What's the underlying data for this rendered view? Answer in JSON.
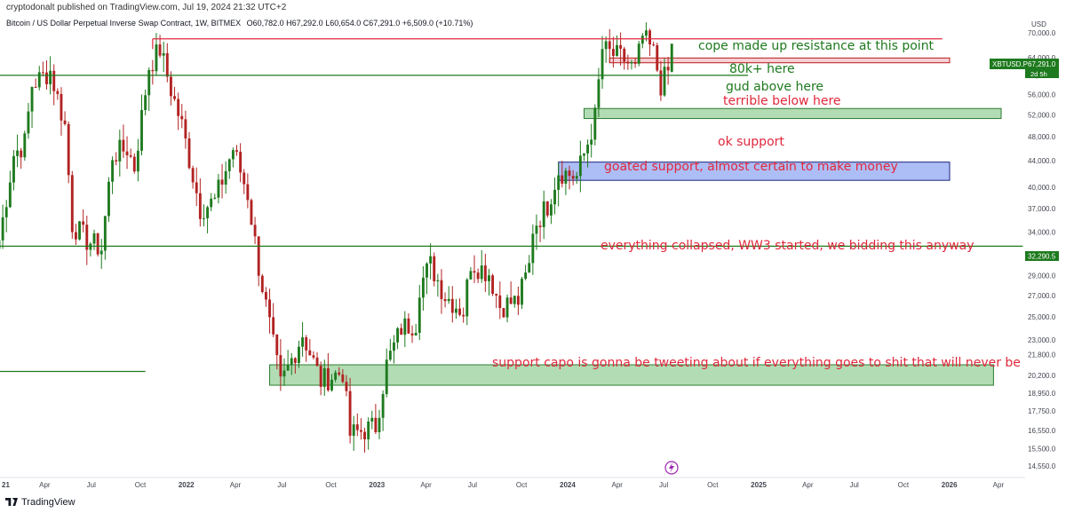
{
  "header": {
    "published": "cryptodonalt published on TradingView.com, Jul 19, 2024 21:32 UTC+2",
    "title": "Bitcoin / US Dollar Perpetual Inverse Swap Contract, 1W, BITMEX",
    "ohlc": "O60,782.0  H67,292.0  L60,654.0  C67,291.0  +6,509.0 (+10.71%)"
  },
  "brand": {
    "name": "TradingView"
  },
  "axis": {
    "currency": "USD"
  },
  "colors": {
    "up": "#089981",
    "down": "#f23645",
    "candle_up": "#1e7a1e",
    "candle_down": "#b22222",
    "annot_green": "#1e7a1e",
    "annot_red": "#e0283c",
    "zone_green": "#a5d6a7",
    "zone_blue": "#9fb3f5",
    "zone_red": "#f7c7cc"
  },
  "chart_data": {
    "type": "candlestick",
    "symbol": "XBTUSD.P",
    "interval": "1W",
    "exchange": "BITMEX",
    "y_scale": "log",
    "ylim": [
      14000,
      76000
    ],
    "price_ticks": [
      "70,000.0",
      "64,000.0",
      "60,000.0",
      "56,000.0",
      "52,000.0",
      "48,000.0",
      "44,000.0",
      "40,000.0",
      "37,000.0",
      "34,000.0",
      "31,000.0",
      "29,000.0",
      "27,000.0",
      "25,000.0",
      "23,000.0",
      "21,800.0",
      "20,200.0",
      "18,950.0",
      "17,750.0",
      "16,550.0",
      "15,500.0",
      "14,550.0"
    ],
    "time_ticks": [
      "2021",
      "Apr",
      "Jul",
      "Oct",
      "2022",
      "Apr",
      "Jul",
      "Oct",
      "2023",
      "Apr",
      "Jul",
      "Oct",
      "2024",
      "Apr",
      "Jul",
      "Oct",
      "2025",
      "Apr",
      "Jul",
      "Oct",
      "2026",
      "Apr"
    ],
    "ohlc": {
      "open": 60782.0,
      "high": 67292.0,
      "low": 60654.0,
      "close": 67291.0,
      "change": 6509.0,
      "change_pct": 10.71
    },
    "last_price_label": "67,291.0",
    "countdown_label": "2d 5h",
    "level_label": "32,290.5",
    "close_path": [
      [
        "2021-01-04",
        33000
      ],
      [
        "2021-02-01",
        45000
      ],
      [
        "2021-02-22",
        47000
      ],
      [
        "2021-03-08",
        58000
      ],
      [
        "2021-04-12",
        61000
      ],
      [
        "2021-05-10",
        50000
      ],
      [
        "2021-05-24",
        35000
      ],
      [
        "2021-06-21",
        33000
      ],
      [
        "2021-07-19",
        32000
      ],
      [
        "2021-08-09",
        45000
      ],
      [
        "2021-09-06",
        46000
      ],
      [
        "2021-09-20",
        43000
      ],
      [
        "2021-10-18",
        62000
      ],
      [
        "2021-11-08",
        66000
      ],
      [
        "2021-11-29",
        57000
      ],
      [
        "2021-12-20",
        50000
      ],
      [
        "2022-01-24",
        37000
      ],
      [
        "2022-02-21",
        38000
      ],
      [
        "2022-03-28",
        46000
      ],
      [
        "2022-04-25",
        39000
      ],
      [
        "2022-05-16",
        30000
      ],
      [
        "2022-06-13",
        22500
      ],
      [
        "2022-06-27",
        19500
      ],
      [
        "2022-08-08",
        23500
      ],
      [
        "2022-09-12",
        19800
      ],
      [
        "2022-10-24",
        20500
      ],
      [
        "2022-11-07",
        16300
      ],
      [
        "2022-12-26",
        16800
      ],
      [
        "2023-01-16",
        21000
      ],
      [
        "2023-02-13",
        24000
      ],
      [
        "2023-03-13",
        24500
      ],
      [
        "2023-03-20",
        28000
      ],
      [
        "2023-04-10",
        30200
      ],
      [
        "2023-05-08",
        27000
      ],
      [
        "2023-06-12",
        25500
      ],
      [
        "2023-06-26",
        30500
      ],
      [
        "2023-07-31",
        29300
      ],
      [
        "2023-08-21",
        26000
      ],
      [
        "2023-09-25",
        26500
      ],
      [
        "2023-10-16",
        30000
      ],
      [
        "2023-10-23",
        34500
      ],
      [
        "2023-11-20",
        37500
      ],
      [
        "2023-12-11",
        42500
      ],
      [
        "2024-01-15",
        41500
      ],
      [
        "2024-02-05",
        47000
      ],
      [
        "2024-02-19",
        51500
      ],
      [
        "2024-03-04",
        66000
      ],
      [
        "2024-03-18",
        65000
      ],
      [
        "2024-04-15",
        63500
      ],
      [
        "2024-05-06",
        61000
      ],
      [
        "2024-05-20",
        69000
      ],
      [
        "2024-06-10",
        65000
      ],
      [
        "2024-06-24",
        58000
      ],
      [
        "2024-07-08",
        60782
      ],
      [
        "2024-07-15",
        67291
      ]
    ],
    "annotations": [
      {
        "text": "cope made up resistance at this point",
        "color": "green"
      },
      {
        "text": "80k+ here",
        "color": "green"
      },
      {
        "text": "gud above here",
        "color": "green"
      },
      {
        "text": "terrible below here",
        "color": "red"
      },
      {
        "text": "ok support",
        "color": "red"
      },
      {
        "text": "goated support, almost certain to make money",
        "color": "red"
      },
      {
        "text": "everything collapsed, WW3 started, we bidding this anyway",
        "color": "red"
      },
      {
        "text": "support capo is gonna be tweeting about if everything goes to shit that will never be hit",
        "color": "red"
      }
    ],
    "levels": [
      {
        "kind": "line",
        "price": 68500,
        "from": "2021-10-25",
        "to": "2025-12-15",
        "color": "red"
      },
      {
        "kind": "line",
        "price": 60000,
        "from": "2021-01-01",
        "to": "2024-12-08",
        "color": "green"
      },
      {
        "kind": "line",
        "price": 32290.5,
        "from": "2020-12-28",
        "to": "2026-05-18",
        "color": "green"
      },
      {
        "kind": "line",
        "price": 20500,
        "from": "2020-12-28",
        "to": "2021-10-11",
        "color": "green"
      },
      {
        "kind": "zone",
        "low": 62800,
        "high": 63900,
        "from": "2024-03-18",
        "to": "2025-12-29",
        "color": "red"
      },
      {
        "kind": "zone",
        "low": 51300,
        "high": 53200,
        "from": "2024-01-29",
        "to": "2026-05-18",
        "color": "green"
      },
      {
        "kind": "zone",
        "low": 41000,
        "high": 43800,
        "from": "2023-12-11",
        "to": "2025-12-29",
        "color": "blue"
      },
      {
        "kind": "zone",
        "low": 19500,
        "high": 21000,
        "from": "2022-06-06",
        "to": "2026-03-23",
        "color": "green"
      }
    ]
  }
}
